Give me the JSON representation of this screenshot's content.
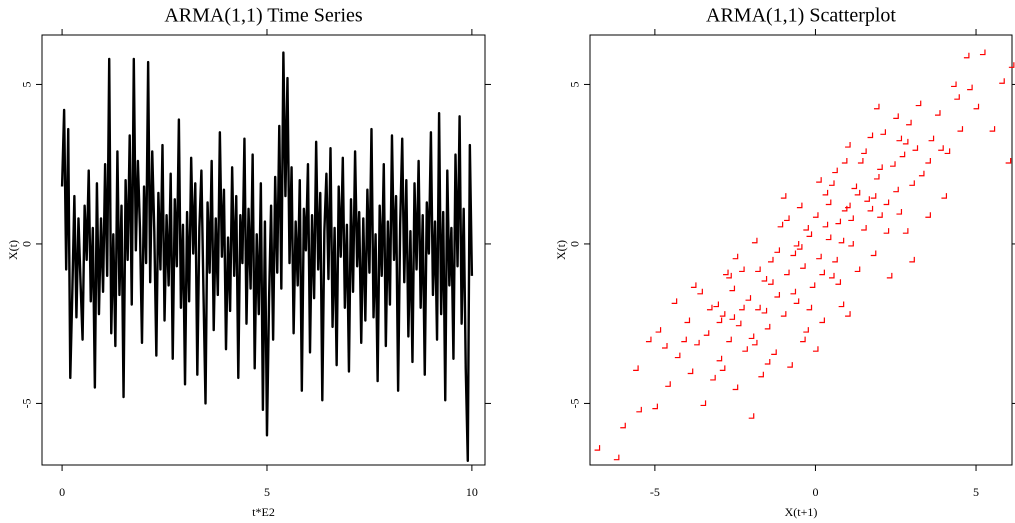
{
  "chart_data": [
    {
      "type": "line",
      "title": "ARMA(1,1) Time Series",
      "xlabel": "t*E2",
      "ylabel": "X(t)",
      "color": "#000000",
      "xlim": [
        -0.49,
        10.32
      ],
      "ylim": [
        -6.93,
        6.55
      ],
      "xticks": [
        0,
        5,
        10
      ],
      "yticks": [
        -5,
        0,
        5
      ],
      "x": [
        0,
        0.05,
        0.1,
        0.15,
        0.2,
        0.25,
        0.3,
        0.35,
        0.4,
        0.45,
        0.5,
        0.55,
        0.6,
        0.65,
        0.7,
        0.75,
        0.8,
        0.85,
        0.9,
        0.95,
        1,
        1.05,
        1.1,
        1.15,
        1.2,
        1.25,
        1.3,
        1.35,
        1.4,
        1.45,
        1.5,
        1.55,
        1.6,
        1.65,
        1.7,
        1.75,
        1.8,
        1.85,
        1.9,
        1.95,
        2,
        2.05,
        2.1,
        2.15,
        2.2,
        2.25,
        2.3,
        2.35,
        2.4,
        2.45,
        2.5,
        2.55,
        2.6,
        2.65,
        2.7,
        2.75,
        2.8,
        2.85,
        2.9,
        2.95,
        3,
        3.05,
        3.1,
        3.15,
        3.2,
        3.25,
        3.3,
        3.35,
        3.4,
        3.45,
        3.5,
        3.55,
        3.6,
        3.65,
        3.7,
        3.75,
        3.8,
        3.85,
        3.9,
        3.95,
        4,
        4.05,
        4.1,
        4.15,
        4.2,
        4.25,
        4.3,
        4.35,
        4.4,
        4.45,
        4.5,
        4.55,
        4.6,
        4.65,
        4.7,
        4.75,
        4.8,
        4.85,
        4.9,
        4.95,
        5,
        5.05,
        5.1,
        5.15,
        5.2,
        5.25,
        5.3,
        5.35,
        5.4,
        5.45,
        5.5,
        5.55,
        5.6,
        5.65,
        5.7,
        5.75,
        5.8,
        5.85,
        5.9,
        5.95,
        6,
        6.05,
        6.1,
        6.15,
        6.2,
        6.25,
        6.3,
        6.35,
        6.4,
        6.45,
        6.5,
        6.55,
        6.6,
        6.65,
        6.7,
        6.75,
        6.8,
        6.85,
        6.9,
        6.95,
        7,
        7.05,
        7.1,
        7.15,
        7.2,
        7.25,
        7.3,
        7.35,
        7.4,
        7.45,
        7.5,
        7.55,
        7.6,
        7.65,
        7.7,
        7.75,
        7.8,
        7.85,
        7.9,
        7.95,
        8,
        8.05,
        8.1,
        8.15,
        8.2,
        8.25,
        8.3,
        8.35,
        8.4,
        8.45,
        8.5,
        8.55,
        8.6,
        8.65,
        8.7,
        8.75,
        8.8,
        8.85,
        8.9,
        8.95,
        9,
        9.05,
        9.1,
        9.15,
        9.2,
        9.25,
        9.3,
        9.35,
        9.4,
        9.45,
        9.5,
        9.55,
        9.6,
        9.65,
        9.7,
        9.75,
        9.8,
        9.85,
        9.9,
        9.95,
        10
      ],
      "values": [
        1.8,
        4.2,
        -0.8,
        3.6,
        -4.2,
        -1.5,
        1.5,
        -2.3,
        0.8,
        -1.2,
        -3.0,
        1.2,
        -0.5,
        2.3,
        -1.8,
        0.5,
        -4.5,
        1.9,
        -2.2,
        0.8,
        -1.5,
        2.5,
        -1.0,
        5.8,
        -2.8,
        0.3,
        -3.2,
        2.9,
        -1.6,
        1.2,
        -4.8,
        2.0,
        -0.5,
        3.4,
        -1.9,
        5.8,
        -0.2,
        2.6,
        0.5,
        -3.1,
        1.8,
        -0.6,
        5.7,
        -1.2,
        2.9,
        0.4,
        -3.5,
        1.6,
        -0.8,
        3.1,
        -2.4,
        0.9,
        -1.3,
        2.2,
        -3.6,
        1.4,
        -0.7,
        3.9,
        -2.0,
        0.6,
        -4.4,
        1.0,
        -1.8,
        2.7,
        -0.3,
        1.9,
        -4.1,
        0.5,
        2.3,
        -1.5,
        -5.0,
        1.3,
        -0.9,
        2.6,
        -2.7,
        0.8,
        -1.6,
        3.5,
        -0.4,
        1.7,
        -3.3,
        0.2,
        -2.1,
        2.4,
        -1.0,
        1.5,
        -4.2,
        0.9,
        -0.6,
        3.3,
        -2.5,
        1.1,
        -1.4,
        2.8,
        -3.9,
        0.3,
        -2.2,
        1.9,
        -5.2,
        0.7,
        -6.0,
        -1.8,
        1.2,
        -3.0,
        2.1,
        -0.9,
        3.7,
        -1.4,
        6.0,
        1.5,
        5.2,
        -0.6,
        2.4,
        -2.8,
        0.7,
        -1.3,
        2.0,
        -4.6,
        1.1,
        -0.2,
        2.5,
        -3.4,
        0.9,
        -1.7,
        3.2,
        -0.8,
        1.6,
        -4.9,
        0.4,
        2.2,
        -1.1,
        3.0,
        -2.6,
        0.5,
        -3.8,
        1.8,
        -0.4,
        2.7,
        -2.0,
        0.6,
        -4.0,
        1.4,
        -1.5,
        2.9,
        -0.7,
        1.0,
        -3.1,
        0.8,
        -2.4,
        1.7,
        -0.9,
        3.6,
        -2.3,
        0.3,
        -4.3,
        1.2,
        -1.0,
        2.5,
        -3.2,
        0.7,
        -1.9,
        3.4,
        -0.5,
        1.5,
        -4.6,
        0.6,
        3.3,
        -1.2,
        2.0,
        -2.9,
        0.4,
        -3.7,
        1.9,
        -0.8,
        2.6,
        -2.0,
        0.9,
        -4.1,
        1.3,
        -0.3,
        3.5,
        -1.6,
        0.7,
        -3.0,
        4.1,
        -2.2,
        1.0,
        -4.9,
        2.3,
        -1.3,
        0.5,
        -3.6,
        2.8,
        -0.7,
        4.0,
        -2.5,
        1.1,
        -3.9,
        -6.8,
        3.1,
        -1.0
      ]
    },
    {
      "type": "scatter",
      "title": "ARMA(1,1) Scatterplot",
      "xlabel": "X(t+1)",
      "ylabel": "X(t)",
      "color": "#ff0000",
      "xlim": [
        -7.02,
        6.12
      ],
      "ylim": [
        -6.93,
        6.55
      ],
      "xticks": [
        -5,
        0,
        5
      ],
      "yticks": [
        -5,
        0,
        5
      ],
      "x": [
        -6.8,
        -6.0,
        -6.2,
        -5.5,
        -5.0,
        -5.2,
        -4.9,
        -4.6,
        -4.3,
        -4.0,
        -3.9,
        -3.7,
        -3.6,
        -3.4,
        -3.2,
        -3.1,
        -3.0,
        -2.9,
        -2.8,
        -2.7,
        -2.6,
        -2.5,
        -2.4,
        -2.3,
        -2.2,
        -2.1,
        -2.0,
        -1.9,
        -1.8,
        -1.7,
        -1.6,
        -1.5,
        -1.4,
        -1.3,
        -1.2,
        -1.1,
        -1.0,
        -0.9,
        -0.8,
        -0.7,
        -0.6,
        -0.5,
        -0.4,
        -0.3,
        -0.2,
        -0.1,
        0.0,
        0.1,
        0.2,
        0.3,
        0.4,
        0.5,
        0.6,
        0.7,
        0.8,
        0.9,
        1.0,
        1.1,
        1.2,
        1.3,
        1.4,
        1.5,
        1.6,
        1.7,
        1.8,
        1.9,
        2.0,
        2.1,
        2.2,
        2.3,
        2.4,
        2.5,
        2.6,
        2.7,
        2.8,
        2.9,
        3.0,
        3.2,
        3.3,
        3.5,
        3.6,
        3.8,
        4.0,
        4.1,
        4.3,
        4.5,
        4.7,
        5.0,
        5.2,
        5.5,
        5.8,
        6.0,
        6.1,
        -4.4,
        -3.5,
        -2.0,
        -1.0,
        0.0,
        1.0,
        3.0,
        -3.3,
        -2.7,
        -1.5,
        -0.5,
        0.5,
        1.5,
        2.5,
        3.5,
        -1.8,
        -0.3,
        0.8,
        1.8,
        -2.3,
        -1.2,
        0.2,
        0.9,
        2.0,
        -0.7,
        0.4,
        1.1,
        -4.7,
        -3.8,
        -2.9,
        -1.6,
        -0.6,
        0.6,
        1.7,
        2.8,
        3.9,
        4.8,
        -5.6,
        -4.1,
        -2.5,
        -1.4,
        -0.2,
        0.3,
        1.3,
        2.2,
        3.1,
        4.4,
        -0.9,
        0.1,
        1.0,
        -1.9,
        -3.0,
        2.6,
        0.7,
        -0.4,
        1.9,
        -2.6
      ],
      "values": [
        -6.4,
        -5.7,
        -6.7,
        -5.2,
        -5.1,
        -3.0,
        -2.7,
        -4.4,
        -3.5,
        -2.4,
        -4.0,
        -3.1,
        -1.5,
        -2.8,
        -4.2,
        -1.9,
        -3.6,
        -2.2,
        -0.9,
        -3.0,
        -1.4,
        -4.5,
        -2.5,
        -0.8,
        -3.3,
        -1.7,
        -2.9,
        0.1,
        -2.0,
        -4.1,
        -1.1,
        -2.6,
        -0.5,
        -3.4,
        -1.6,
        0.6,
        -2.2,
        -0.9,
        -3.8,
        -0.3,
        -1.8,
        1.2,
        -0.7,
        -2.7,
        0.3,
        -1.3,
        0.9,
        -0.4,
        -2.4,
        1.6,
        0.2,
        -1.0,
        2.3,
        0.7,
        -1.9,
        1.1,
        3.1,
        0.0,
        1.8,
        -0.8,
        2.6,
        0.5,
        1.4,
        3.4,
        -0.3,
        2.1,
        0.9,
        3.5,
        1.3,
        -1.0,
        2.5,
        4.0,
        1.0,
        2.8,
        0.4,
        3.8,
        1.9,
        4.4,
        2.2,
        0.9,
        3.3,
        4.1,
        1.5,
        2.9,
        5.0,
        3.6,
        5.9,
        4.3,
        6.0,
        3.6,
        5.1,
        2.6,
        5.6,
        -1.8,
        -5.0,
        -5.4,
        1.5,
        -3.3,
        -2.2,
        -0.5,
        -2.0,
        -1.0,
        -3.7,
        -0.1,
        1.9,
        2.9,
        1.7,
        2.6,
        -0.8,
        0.5,
        0.1,
        1.5,
        -2.0,
        -0.2,
        -0.9,
        2.6,
        2.4,
        -1.5,
        1.3,
        0.8,
        -3.2,
        -1.3,
        -3.9,
        -2.1,
        0.0,
        -0.5,
        1.1,
        3.2,
        3.0,
        4.9,
        -3.9,
        -3.0,
        -0.4,
        -1.2,
        -2.0,
        0.6,
        1.6,
        0.4,
        3.0,
        4.6,
        0.8,
        2.0,
        1.2,
        -3.1,
        -2.4,
        3.3,
        -1.2,
        -3.0,
        4.3,
        -2.3
      ]
    }
  ]
}
